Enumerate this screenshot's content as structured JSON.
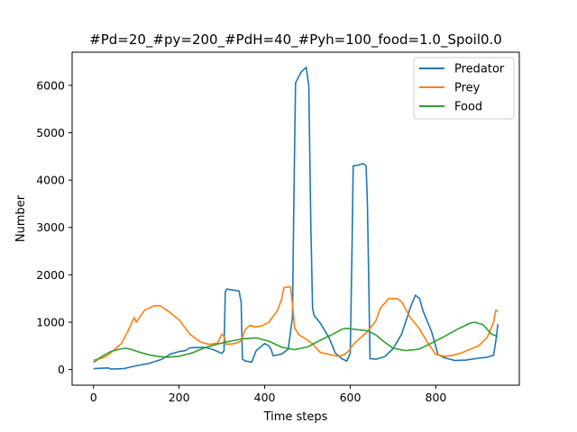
{
  "chart_data": {
    "type": "line",
    "title": "#Pd=20_#py=200_#PdH=40_#Pyh=100_food=1.0_Spoil0.0",
    "xlabel": "Time steps",
    "ylabel": "Number",
    "xlim": [
      -50,
      995
    ],
    "ylim": [
      -330,
      6700
    ],
    "xticks": [
      0,
      200,
      400,
      600,
      800
    ],
    "yticks": [
      0,
      1000,
      2000,
      3000,
      4000,
      5000,
      6000
    ],
    "grid": false,
    "legend_position": "top-right",
    "series": [
      {
        "name": "Predator",
        "color": "#1f77b4",
        "points": [
          [
            0,
            20
          ],
          [
            35,
            35
          ],
          [
            40,
            10
          ],
          [
            70,
            20
          ],
          [
            100,
            80
          ],
          [
            130,
            130
          ],
          [
            160,
            220
          ],
          [
            180,
            330
          ],
          [
            200,
            380
          ],
          [
            215,
            400
          ],
          [
            225,
            460
          ],
          [
            260,
            470
          ],
          [
            280,
            420
          ],
          [
            300,
            340
          ],
          [
            305,
            400
          ],
          [
            308,
            1650
          ],
          [
            312,
            1700
          ],
          [
            340,
            1660
          ],
          [
            345,
            1420
          ],
          [
            348,
            220
          ],
          [
            355,
            180
          ],
          [
            370,
            160
          ],
          [
            380,
            400
          ],
          [
            400,
            550
          ],
          [
            410,
            500
          ],
          [
            415,
            420
          ],
          [
            420,
            290
          ],
          [
            440,
            330
          ],
          [
            455,
            430
          ],
          [
            465,
            1100
          ],
          [
            468,
            3500
          ],
          [
            472,
            6050
          ],
          [
            485,
            6280
          ],
          [
            497,
            6380
          ],
          [
            503,
            6000
          ],
          [
            508,
            3000
          ],
          [
            512,
            1300
          ],
          [
            515,
            1150
          ],
          [
            530,
            980
          ],
          [
            550,
            680
          ],
          [
            565,
            350
          ],
          [
            580,
            230
          ],
          [
            592,
            180
          ],
          [
            600,
            350
          ],
          [
            604,
            2500
          ],
          [
            607,
            4300
          ],
          [
            620,
            4320
          ],
          [
            630,
            4350
          ],
          [
            637,
            4300
          ],
          [
            640,
            3500
          ],
          [
            643,
            2000
          ],
          [
            646,
            230
          ],
          [
            660,
            220
          ],
          [
            680,
            270
          ],
          [
            700,
            440
          ],
          [
            720,
            750
          ],
          [
            740,
            1300
          ],
          [
            752,
            1570
          ],
          [
            762,
            1500
          ],
          [
            770,
            1240
          ],
          [
            790,
            800
          ],
          [
            805,
            320
          ],
          [
            820,
            250
          ],
          [
            845,
            190
          ],
          [
            870,
            200
          ],
          [
            900,
            240
          ],
          [
            920,
            260
          ],
          [
            935,
            300
          ],
          [
            940,
            600
          ],
          [
            945,
            960
          ]
        ]
      },
      {
        "name": "Prey",
        "color": "#ff7f0e",
        "points": [
          [
            0,
            200
          ],
          [
            20,
            240
          ],
          [
            35,
            310
          ],
          [
            50,
            430
          ],
          [
            65,
            550
          ],
          [
            80,
            800
          ],
          [
            95,
            1100
          ],
          [
            100,
            1000
          ],
          [
            120,
            1260
          ],
          [
            140,
            1340
          ],
          [
            155,
            1350
          ],
          [
            175,
            1230
          ],
          [
            200,
            1050
          ],
          [
            225,
            750
          ],
          [
            250,
            580
          ],
          [
            270,
            530
          ],
          [
            290,
            560
          ],
          [
            300,
            750
          ],
          [
            305,
            700
          ],
          [
            310,
            530
          ],
          [
            330,
            550
          ],
          [
            345,
            600
          ],
          [
            355,
            850
          ],
          [
            365,
            930
          ],
          [
            380,
            900
          ],
          [
            395,
            930
          ],
          [
            410,
            1000
          ],
          [
            430,
            1250
          ],
          [
            440,
            1500
          ],
          [
            445,
            1730
          ],
          [
            460,
            1750
          ],
          [
            465,
            1380
          ],
          [
            470,
            880
          ],
          [
            480,
            730
          ],
          [
            490,
            680
          ],
          [
            500,
            620
          ],
          [
            510,
            560
          ],
          [
            520,
            460
          ],
          [
            530,
            360
          ],
          [
            550,
            320
          ],
          [
            570,
            280
          ],
          [
            585,
            310
          ],
          [
            595,
            380
          ],
          [
            610,
            560
          ],
          [
            640,
            800
          ],
          [
            660,
            1030
          ],
          [
            670,
            1290
          ],
          [
            690,
            1500
          ],
          [
            710,
            1500
          ],
          [
            720,
            1430
          ],
          [
            740,
            1100
          ],
          [
            760,
            880
          ],
          [
            780,
            580
          ],
          [
            800,
            320
          ],
          [
            820,
            280
          ],
          [
            840,
            300
          ],
          [
            860,
            350
          ],
          [
            880,
            430
          ],
          [
            900,
            500
          ],
          [
            920,
            680
          ],
          [
            935,
            1000
          ],
          [
            940,
            1250
          ],
          [
            945,
            1230
          ]
        ]
      },
      {
        "name": "Food",
        "color": "#2ca02c",
        "points": [
          [
            0,
            150
          ],
          [
            20,
            280
          ],
          [
            40,
            380
          ],
          [
            60,
            430
          ],
          [
            75,
            450
          ],
          [
            90,
            420
          ],
          [
            110,
            360
          ],
          [
            130,
            310
          ],
          [
            150,
            280
          ],
          [
            170,
            260
          ],
          [
            200,
            280
          ],
          [
            230,
            350
          ],
          [
            260,
            460
          ],
          [
            290,
            540
          ],
          [
            320,
            600
          ],
          [
            350,
            650
          ],
          [
            380,
            670
          ],
          [
            410,
            600
          ],
          [
            440,
            470
          ],
          [
            470,
            420
          ],
          [
            500,
            480
          ],
          [
            530,
            620
          ],
          [
            560,
            750
          ],
          [
            580,
            850
          ],
          [
            590,
            870
          ],
          [
            610,
            850
          ],
          [
            640,
            820
          ],
          [
            660,
            730
          ],
          [
            680,
            580
          ],
          [
            700,
            450
          ],
          [
            730,
            400
          ],
          [
            760,
            430
          ],
          [
            790,
            560
          ],
          [
            820,
            700
          ],
          [
            850,
            850
          ],
          [
            880,
            980
          ],
          [
            890,
            1000
          ],
          [
            910,
            950
          ],
          [
            930,
            750
          ],
          [
            945,
            700
          ]
        ]
      }
    ]
  }
}
